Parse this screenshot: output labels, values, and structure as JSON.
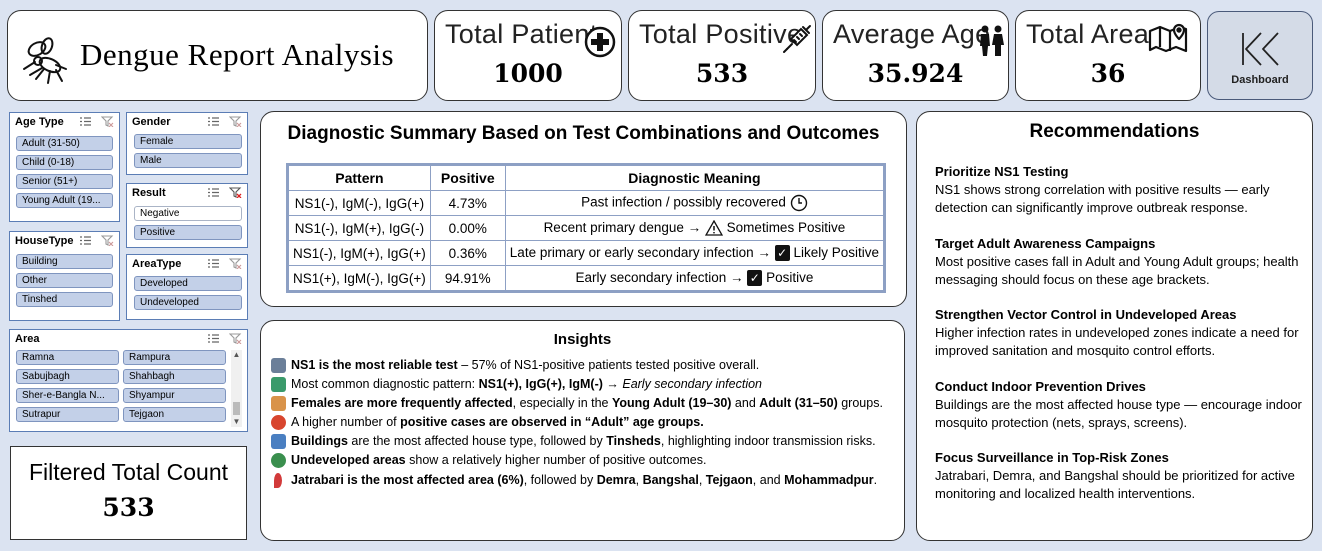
{
  "header": {
    "title": "Dengue Report Analysis"
  },
  "kpis": [
    {
      "label": "Total Patient",
      "value": "1000",
      "icon": "plus-circle-icon"
    },
    {
      "label": "Total Positive",
      "value": "533",
      "icon": "syringe-icon"
    },
    {
      "label": "Average Age",
      "value": "35.924",
      "icon": "people-icon"
    },
    {
      "label": "Total Area",
      "value": "36",
      "icon": "map-icon"
    }
  ],
  "dashboard_button": {
    "label": "Dashboard",
    "icon": "rewind-icon"
  },
  "slicers": {
    "age_type": {
      "title": "Age Type",
      "items": [
        "Adult (31-50)",
        "Child (0-18)",
        "Senior (51+)",
        "Young Adult (19..."
      ]
    },
    "gender": {
      "title": "Gender",
      "items": [
        "Female",
        "Male"
      ]
    },
    "result": {
      "title": "Result",
      "items": [
        "Negative",
        "Positive"
      ]
    },
    "house_type": {
      "title": "HouseType",
      "items": [
        "Building",
        "Other",
        "Tinshed"
      ]
    },
    "area_type": {
      "title": "AreaType",
      "items": [
        "Developed",
        "Undeveloped"
      ]
    },
    "area": {
      "title": "Area",
      "items": [
        "Ramna",
        "Rampura",
        "Sabujbagh",
        "Shahbagh",
        "Sher-e-Bangla N...",
        "Shyampur",
        "Sutrapur",
        "Tejgaon"
      ]
    }
  },
  "filtered": {
    "label": "Filtered Total Count",
    "value": "533"
  },
  "diagnostic": {
    "title": "Diagnostic Summary Based on Test Combinations and Outcomes",
    "headers": [
      "Pattern",
      "Positive",
      "Diagnostic Meaning"
    ],
    "rows": [
      {
        "pattern": "NS1(-), IgM(-), IgG(+)",
        "positive": "4.73%",
        "meaning": "Past infection / possibly recovered",
        "suffix": ""
      },
      {
        "pattern": "NS1(-), IgM(+), IgG(-)",
        "positive": "0.00%",
        "meaning": "Recent primary dengue →",
        "suffix": "Sometimes Positive"
      },
      {
        "pattern": "NS1(-), IgM(+), IgG(+)",
        "positive": "0.36%",
        "meaning": "Late primary or early secondary infection →",
        "suffix": "Likely Positive"
      },
      {
        "pattern": "NS1(+), IgM(-), IgG(+)",
        "positive": "94.91%",
        "meaning": "Early secondary infection →",
        "suffix": "Positive"
      }
    ]
  },
  "insights": {
    "title": "Insights",
    "items": [
      {
        "b": "NS1 is the most reliable test",
        "t": " – 57% of NS1-positive patients tested positive overall.",
        "color": "#6b7f99"
      },
      {
        "a": "Most common diagnostic pattern: ",
        "b": "NS1(+), IgG(+), IgM(-)",
        "t": " → ",
        "i": "Early secondary infection",
        "color": "#3a9a6b"
      },
      {
        "b": "Females are more frequently affected",
        "t": ", especially in the ",
        "b2": "Young Adult (19–30)",
        "t2": " and ",
        "b3": "Adult (31–50)",
        "t3": " groups.",
        "color": "#d9934a"
      },
      {
        "a": "A higher number of ",
        "b": "positive cases are observed in “Adult” age groups.",
        "color": "#d8452e"
      },
      {
        "b": "Buildings",
        "t": " are the most affected house type, followed by ",
        "b2": "Tinsheds",
        "t2": ", highlighting indoor transmission risks.",
        "color": "#4a7fc1"
      },
      {
        "b": "Undeveloped areas",
        "t": " show a relatively higher number of positive outcomes.",
        "color": "#3a8f4e"
      },
      {
        "b": "Jatrabari is the most affected area (6%)",
        "t": ", followed by ",
        "b2": "Demra",
        "t2": ", ",
        "b3": "Bangshal",
        "t3": ", ",
        "b4": "Tejgaon",
        "t4": ", and ",
        "b5": "Mohammadpur",
        "t5": ".",
        "color": "#d23a3a"
      }
    ]
  },
  "recommendations": {
    "title": "Recommendations",
    "items": [
      {
        "h": "Prioritize NS1 Testing",
        "t": "NS1 shows strong correlation with positive results — early detection can significantly improve outbreak response."
      },
      {
        "h": "Target Adult Awareness Campaigns",
        "t": "Most positive cases fall in Adult and Young Adult groups; health messaging should focus on these age brackets."
      },
      {
        "h": "Strengthen Vector Control in Undeveloped Areas",
        "t": "Higher infection rates in undeveloped zones indicate a need for improved sanitation and mosquito control efforts."
      },
      {
        "h": "Conduct Indoor Prevention Drives",
        "t": "Buildings are the most affected house type — encourage indoor mosquito protection (nets, sprays, screens)."
      },
      {
        "h": "Focus Surveillance in Top-Risk Zones",
        "t": "Jatrabari, Demra, and Bangshal should be prioritized for active monitoring and localized health interventions."
      }
    ]
  }
}
